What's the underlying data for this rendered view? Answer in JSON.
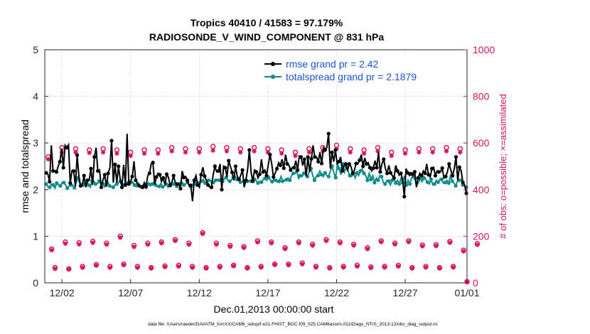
{
  "chart_data": {
    "type": "line",
    "title_line1": "Tropics 40410 / 41583 = 97.179%",
    "title_line2": "RADIOSONDE_V_WIND_COMPONENT @ 831 hPa",
    "xlabel": "Dec.01,2013 00:00:00 start",
    "ylabel_left": "rmse and totalspread",
    "ylabel_right": "# of obs: o=possible; ×=assimilated",
    "footer": "data file: /Users/raeder/DAI/ATM_forcXX/CAM6_setup/f.e21.FHIST_BGC.f09_025.CAM6assim.011/Diags_NTrS_2013-12/obs_diag_output.nc",
    "xlim": [
      0.25,
      31.0
    ],
    "ylim_left": [
      0,
      5
    ],
    "ylim_right": [
      0,
      1000
    ],
    "xticks": [
      1.5,
      6.5,
      11.5,
      16.5,
      21.5,
      26.5,
      31.0
    ],
    "xtick_labels": [
      "12/02",
      "12/07",
      "12/12",
      "12/17",
      "12/22",
      "12/27",
      "01/01"
    ],
    "yticks_left": [
      0,
      1,
      2,
      3,
      4,
      5
    ],
    "yticks_left_labels": [
      "0",
      "1",
      "2",
      "3",
      "4",
      "5"
    ],
    "yticks_right": [
      0,
      200,
      400,
      600,
      800,
      1000
    ],
    "yticks_right_labels": [
      "0",
      "200",
      "400",
      "600",
      "800",
      "1000"
    ],
    "colors": {
      "rmse": "#000000",
      "spread": "#0d8a8a",
      "obs": "#d6165f",
      "legend_text": "#1a55d6"
    },
    "series": [
      {
        "name": "rmse grand pr = 2.42",
        "axis": "left",
        "values": [
          2.36,
          2.33,
          2.17,
          2.95,
          2.4,
          2.41,
          2.38,
          2.5,
          2.6,
          2.88,
          2.47,
          2.95,
          2.9,
          2.96,
          2.14,
          2.41,
          2.4,
          2.07,
          2.74,
          2.29,
          2.08,
          2.1,
          2.3,
          2.05,
          2.2,
          2.2,
          2.45,
          2.1,
          2.7,
          2.9,
          2.4,
          2.42,
          2.05,
          2.21,
          2.32,
          2.06,
          2.35,
          2.47,
          3.05,
          2.15,
          2.54,
          2.15,
          2.5,
          2.22,
          2.05,
          2.53,
          2.1,
          3.2,
          2.12,
          2.17,
          2.28,
          2.61,
          2.2,
          2.13,
          2.08,
          2.07,
          2.05,
          2.15,
          2.06,
          2.3,
          2.35,
          2.55,
          2.58,
          2.11,
          2.27,
          2.35,
          2.32,
          2.17,
          2.25,
          2.1,
          2.33,
          2.27,
          2.09,
          2.16,
          2.3,
          2.15,
          2.12,
          2.13,
          2.02,
          2.4,
          2.26,
          2.28,
          2.2,
          2.08,
          2.09,
          1.75,
          2.2,
          2.3,
          2.1,
          2.05,
          2.32,
          2.48,
          2.29,
          2.2,
          2.1,
          2.05,
          2.05,
          2.32,
          2.5,
          2.38,
          2.4,
          2.55,
          2.0,
          2.5,
          2.47,
          2.27,
          2.62,
          2.5,
          2.37,
          2.2,
          2.5,
          2.28,
          2.22,
          2.31,
          2.42,
          2.05,
          2.2,
          2.44,
          2.85,
          2.38,
          2.18,
          2.42,
          2.38,
          2.25,
          2.33,
          2.65,
          2.38,
          2.42,
          2.3,
          2.53,
          2.75,
          2.55,
          2.27,
          2.35,
          2.45,
          2.58,
          2.52,
          2.65,
          2.46,
          2.75,
          2.55,
          2.52,
          2.42,
          2.48,
          2.47,
          2.62,
          2.42,
          2.72,
          2.7,
          2.52,
          2.65,
          2.28,
          2.7,
          2.38,
          2.66,
          2.95,
          2.7,
          2.7,
          2.6,
          2.8,
          2.56,
          2.9,
          2.85,
          2.9,
          3.2,
          2.45,
          2.8,
          2.6,
          2.85,
          2.55,
          2.6,
          2.7,
          2.4,
          2.52,
          2.55,
          2.4,
          2.55,
          2.5,
          2.35,
          2.42,
          2.56,
          2.55,
          2.63,
          2.75,
          2.5,
          2.68,
          2.55,
          2.58,
          2.47,
          2.4,
          2.46,
          2.62,
          2.47,
          2.8,
          2.38,
          2.55,
          2.65,
          2.45,
          2.35,
          2.52,
          2.36,
          2.3,
          2.25,
          2.52,
          2.4,
          2.31,
          2.35,
          2.21,
          1.85,
          2.45,
          2.36,
          2.3,
          2.34,
          2.3,
          2.38,
          2.05,
          2.25,
          2.35,
          2.3,
          2.4,
          2.35,
          2.55,
          2.32,
          2.27,
          2.45,
          2.48,
          2.3,
          2.4,
          2.38,
          2.38,
          2.46,
          2.25,
          2.28,
          2.38,
          2.55,
          2.42,
          2.3,
          2.45,
          2.7,
          2.2,
          2.48,
          2.4,
          2.15,
          2.1,
          1.92
        ]
      },
      {
        "name": "totalspread grand pr = 2.1879",
        "axis": "left",
        "values": [
          2.12,
          2.06,
          2.05,
          2.12,
          2.1,
          2.03,
          2.14,
          2.1,
          2.08,
          2.15,
          2.15,
          2.1,
          2.03,
          2.08,
          2.1,
          2.1,
          2.04,
          2.16,
          2.25,
          2.13,
          2.1,
          2.07,
          2.13,
          2.16,
          2.1,
          2.05,
          2.18,
          2.18,
          2.12,
          2.13,
          2.18,
          2.12,
          2.13,
          2.06,
          2.11,
          2.16,
          2.08,
          2.06,
          2.05,
          2.1,
          2.12,
          2.15,
          2.18,
          2.13,
          2.1,
          2.08,
          2.14,
          2.2,
          2.15,
          2.17,
          2.1,
          2.06,
          2.12,
          2.1,
          2.06,
          2.1,
          2.11,
          2.06,
          2.12,
          2.08,
          2.12,
          2.16,
          2.1,
          2.06,
          2.07,
          2.13,
          2.06,
          2.08,
          2.12,
          2.05,
          2.1,
          2.14,
          2.12,
          2.1,
          2.07,
          2.14,
          2.13,
          2.16,
          2.1,
          2.12,
          2.16,
          2.1,
          2.06,
          2.1,
          2.15,
          2.08,
          2.14,
          2.15,
          2.18,
          2.22,
          2.14,
          2.12,
          2.2,
          2.2,
          2.16,
          2.13,
          2.2,
          2.22,
          2.2,
          2.18,
          2.18,
          2.24,
          2.26,
          2.19,
          2.18,
          2.21,
          2.26,
          2.28,
          2.22,
          2.2,
          2.16,
          2.16,
          2.18,
          2.2,
          2.18,
          2.19,
          2.18,
          2.26,
          2.22,
          2.19,
          2.14,
          2.18,
          2.16,
          2.22,
          2.24,
          2.2,
          2.26,
          2.2,
          2.17,
          2.22,
          2.2,
          2.16,
          2.18,
          2.28,
          2.18,
          2.2,
          2.21,
          2.25,
          2.2,
          2.3,
          2.35,
          2.34,
          2.4,
          2.24,
          2.3,
          2.28,
          2.35,
          2.32,
          2.28,
          2.38,
          2.45,
          2.3,
          2.2,
          2.28,
          2.3,
          2.4,
          2.32,
          2.28,
          2.36,
          2.3,
          2.28,
          2.4,
          2.5,
          2.35,
          2.26,
          2.55,
          2.45,
          2.32,
          2.55,
          2.38,
          2.5,
          2.4,
          2.3,
          2.28,
          2.35,
          2.25,
          2.36,
          2.3,
          2.4,
          2.44,
          2.35,
          2.3,
          2.2,
          2.35,
          2.22,
          2.3,
          2.15,
          2.25,
          2.2,
          2.3,
          2.28,
          2.15,
          2.12,
          2.2,
          2.18,
          2.1,
          2.2,
          2.25,
          2.14,
          2.2,
          2.12,
          2.24,
          2.15,
          2.3,
          2.1,
          2.2,
          2.12,
          2.25,
          2.28,
          2.2,
          2.14,
          2.16,
          2.23,
          2.17,
          2.25,
          2.22,
          2.16,
          2.12,
          2.22,
          2.1,
          2.12,
          2.2,
          2.16,
          2.22,
          2.22,
          2.14,
          2.15,
          2.2,
          2.14,
          2.3,
          2.18,
          2.14,
          2.08,
          2.18,
          2.2,
          2.22,
          2.1,
          2.08,
          2.05
        ]
      }
    ],
    "obs_count": {
      "axis": "right",
      "x": [
        0.5,
        1.0,
        1.5,
        2.0,
        2.5,
        3.0,
        3.5,
        4.0,
        4.5,
        5.0,
        5.5,
        6.0,
        6.5,
        7.0,
        7.5,
        8.0,
        8.5,
        9.0,
        9.5,
        10.0,
        10.5,
        11.0,
        11.5,
        12.0,
        12.5,
        13.0,
        13.5,
        14.0,
        14.5,
        15.0,
        15.5,
        16.0,
        16.5,
        17.0,
        17.5,
        18.0,
        18.5,
        19.0,
        19.5,
        20.0,
        20.5,
        21.0,
        21.5,
        22.0,
        22.5,
        23.0,
        23.5,
        24.0,
        24.5,
        25.0,
        25.5,
        26.0,
        26.5,
        27.0,
        27.5,
        28.0,
        28.5,
        29.0,
        29.5,
        30.0,
        30.5,
        31.0
      ],
      "possible": [
        540,
        65,
        580,
        60,
        575,
        70,
        570,
        78,
        575,
        70,
        570,
        80,
        560,
        70,
        570,
        65,
        570,
        72,
        580,
        75,
        575,
        70,
        575,
        65,
        585,
        70,
        580,
        75,
        575,
        65,
        580,
        70,
        575,
        80,
        570,
        80,
        560,
        85,
        575,
        70,
        580,
        65,
        590,
        70,
        575,
        75,
        570,
        68,
        580,
        70,
        560,
        75,
        570,
        65,
        575,
        70,
        575,
        65,
        580,
        70,
        575,
        5
      ],
      "assimilated": [
        530,
        60,
        560,
        58,
        560,
        65,
        558,
        74,
        560,
        65,
        555,
        76,
        545,
        65,
        555,
        62,
        555,
        68,
        565,
        70,
        560,
        65,
        560,
        62,
        568,
        66,
        565,
        72,
        560,
        62,
        565,
        66,
        560,
        77,
        555,
        76,
        545,
        80,
        560,
        66,
        565,
        62,
        575,
        66,
        560,
        70,
        555,
        64,
        565,
        66,
        545,
        70,
        555,
        62,
        560,
        66,
        560,
        62,
        565,
        66,
        560,
        3
      ],
      "possible_daily": [
        145,
        175,
        172,
        178,
        170,
        200,
        160,
        170,
        175,
        185,
        170,
        215,
        170,
        160,
        155,
        180,
        175,
        150,
        175,
        165,
        185,
        175,
        165,
        150,
        180,
        170,
        180,
        162,
        163,
        177,
        140,
        168
      ],
      "assimilated_daily": [
        140,
        168,
        165,
        172,
        164,
        194,
        154,
        164,
        170,
        180,
        164,
        210,
        164,
        155,
        150,
        174,
        170,
        145,
        170,
        160,
        180,
        170,
        160,
        145,
        175,
        165,
        175,
        157,
        158,
        172,
        135,
        163
      ]
    }
  }
}
